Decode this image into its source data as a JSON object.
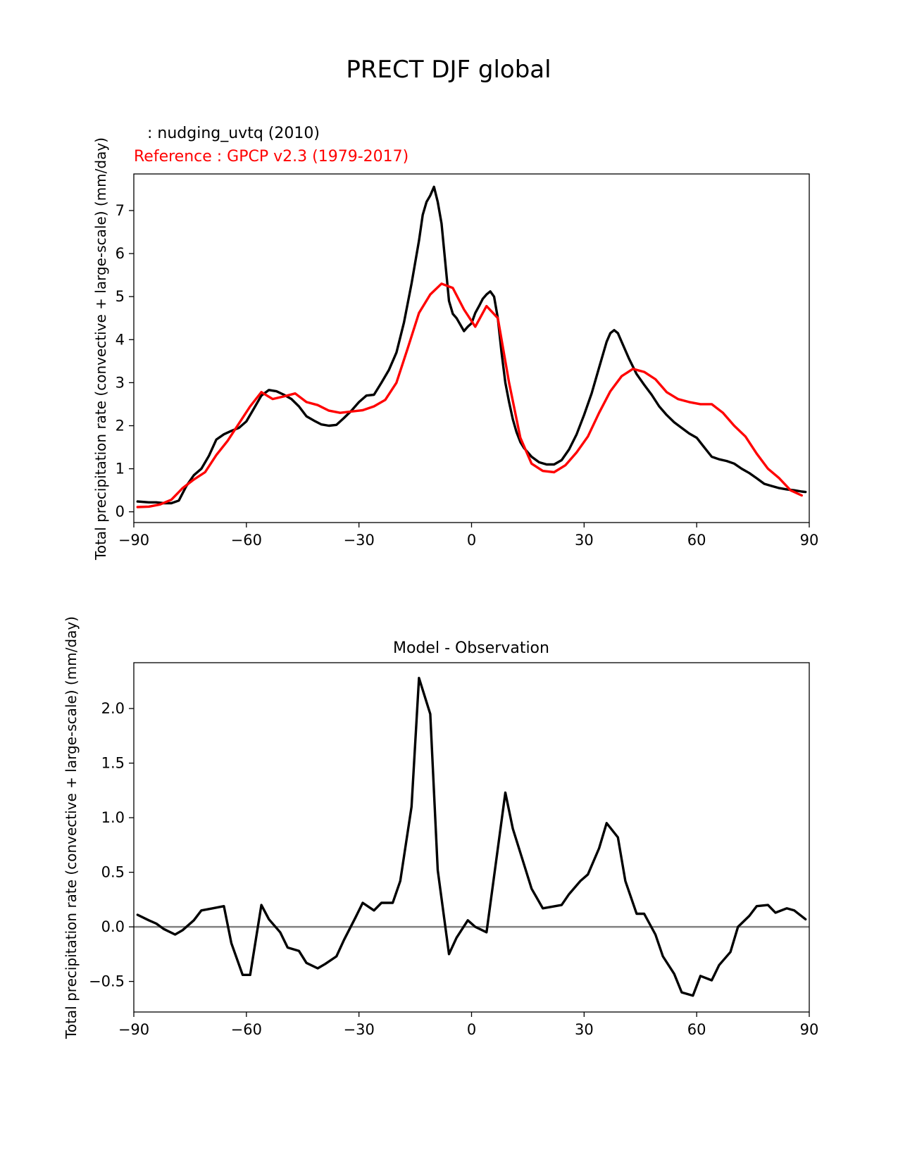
{
  "figure_title": "PRECT DJF global",
  "colors": {
    "model": "#000000",
    "reference": "#ff0000",
    "zero_line": "#808080"
  },
  "chart_data": [
    {
      "type": "line",
      "test_label": "  : nudging_uvtq (2010)",
      "reference_label": "Reference : GPCP v2.3 (1979-2017)",
      "xlabel": "",
      "ylabel": "Total precipitation rate (convective + large-scale) (mm/day)",
      "xlim": [
        -90,
        90
      ],
      "ylim": [
        -0.25,
        7.85
      ],
      "xticks": [
        -90,
        -60,
        -30,
        0,
        30,
        60,
        90
      ],
      "xtick_labels": [
        "−90",
        "−60",
        "−30",
        "0",
        "30",
        "60",
        "90"
      ],
      "yticks": [
        0,
        1,
        2,
        3,
        4,
        5,
        6,
        7
      ],
      "ytick_labels": [
        "0",
        "1",
        "2",
        "3",
        "4",
        "5",
        "6",
        "7"
      ],
      "series": [
        {
          "name": "nudging_uvtq (2010)",
          "color": "model",
          "x": [
            -89,
            -86,
            -84,
            -82,
            -80,
            -78,
            -76,
            -74,
            -72,
            -70,
            -68,
            -66,
            -64,
            -62,
            -60,
            -58,
            -56,
            -54,
            -52,
            -50,
            -48,
            -46,
            -44,
            -42,
            -40,
            -38,
            -36,
            -34,
            -32,
            -30,
            -28,
            -26,
            -24,
            -22,
            -20,
            -18,
            -16,
            -14,
            -13,
            -12,
            -11,
            -10,
            -9,
            -8,
            -7,
            -6,
            -5,
            -4,
            -2,
            -1,
            0,
            1,
            2,
            3,
            4,
            5,
            6,
            7,
            8,
            9,
            10,
            11,
            12,
            13,
            14,
            16,
            18,
            20,
            22,
            24,
            26,
            28,
            30,
            32,
            34,
            36,
            37,
            38,
            39,
            40,
            42,
            44,
            46,
            48,
            50,
            52,
            54,
            56,
            58,
            60,
            62,
            64,
            66,
            68,
            70,
            72,
            74,
            76,
            78,
            80,
            82,
            84,
            86,
            88,
            89
          ],
          "y": [
            0.24,
            0.22,
            0.22,
            0.2,
            0.2,
            0.26,
            0.6,
            0.85,
            1.0,
            1.3,
            1.68,
            1.8,
            1.88,
            1.95,
            2.1,
            2.4,
            2.7,
            2.83,
            2.8,
            2.72,
            2.62,
            2.45,
            2.22,
            2.12,
            2.03,
            2.0,
            2.02,
            2.18,
            2.35,
            2.55,
            2.7,
            2.72,
            3.0,
            3.3,
            3.7,
            4.4,
            5.3,
            6.3,
            6.9,
            7.2,
            7.35,
            7.55,
            7.2,
            6.7,
            5.8,
            4.9,
            4.6,
            4.5,
            4.2,
            4.3,
            4.38,
            4.62,
            4.78,
            4.95,
            5.05,
            5.12,
            5.0,
            4.5,
            3.7,
            3.0,
            2.55,
            2.15,
            1.85,
            1.62,
            1.48,
            1.28,
            1.15,
            1.1,
            1.1,
            1.2,
            1.45,
            1.8,
            2.25,
            2.75,
            3.35,
            3.95,
            4.15,
            4.22,
            4.15,
            3.95,
            3.55,
            3.2,
            2.95,
            2.72,
            2.45,
            2.25,
            2.08,
            1.95,
            1.82,
            1.72,
            1.5,
            1.28,
            1.22,
            1.18,
            1.12,
            1.0,
            0.9,
            0.78,
            0.65,
            0.6,
            0.55,
            0.52,
            0.5,
            0.47,
            0.46
          ]
        },
        {
          "name": "GPCP v2.3 (1979-2017)",
          "color": "reference",
          "x": [
            -89,
            -86,
            -83,
            -80,
            -77,
            -74,
            -71,
            -68,
            -65,
            -62,
            -59,
            -56,
            -53,
            -50,
            -47,
            -44,
            -41,
            -38,
            -35,
            -32,
            -29,
            -26,
            -23,
            -20,
            -17,
            -14,
            -11,
            -8,
            -5,
            -2,
            1,
            4,
            7,
            10,
            13,
            16,
            19,
            22,
            25,
            28,
            31,
            34,
            37,
            40,
            43,
            46,
            49,
            52,
            55,
            58,
            61,
            64,
            67,
            70,
            73,
            76,
            79,
            82,
            85,
            88
          ],
          "y": [
            0.11,
            0.12,
            0.17,
            0.28,
            0.55,
            0.75,
            0.92,
            1.32,
            1.65,
            2.05,
            2.45,
            2.78,
            2.62,
            2.68,
            2.75,
            2.55,
            2.48,
            2.35,
            2.3,
            2.33,
            2.36,
            2.45,
            2.6,
            3.0,
            3.8,
            4.62,
            5.05,
            5.3,
            5.2,
            4.7,
            4.3,
            4.78,
            4.5,
            3.0,
            1.72,
            1.12,
            0.95,
            0.92,
            1.08,
            1.38,
            1.75,
            2.3,
            2.8,
            3.15,
            3.32,
            3.25,
            3.08,
            2.78,
            2.62,
            2.55,
            2.5,
            2.5,
            2.3,
            2.0,
            1.75,
            1.35,
            1.0,
            0.78,
            0.5,
            0.38
          ]
        }
      ]
    },
    {
      "type": "line",
      "title": "Model - Observation",
      "xlabel": "",
      "ylabel": "Total precipitation rate (convective + large-scale) (mm/day)",
      "xlim": [
        -90,
        90
      ],
      "ylim": [
        -0.78,
        2.42
      ],
      "xticks": [
        -90,
        -60,
        -30,
        0,
        30,
        60,
        90
      ],
      "xtick_labels": [
        "−90",
        "−60",
        "−30",
        "0",
        "30",
        "60",
        "90"
      ],
      "yticks": [
        -0.5,
        0.0,
        0.5,
        1.0,
        1.5,
        2.0
      ],
      "ytick_labels": [
        "−0.5",
        "0.0",
        "0.5",
        "1.0",
        "1.5",
        "2.0"
      ],
      "zero_line": 0,
      "series": [
        {
          "name": "Model - Observation",
          "color": "model",
          "x": [
            -89,
            -86,
            -84,
            -82,
            -79,
            -77,
            -74,
            -72,
            -69,
            -66,
            -64,
            -61,
            -59,
            -56,
            -54,
            -51,
            -49,
            -46,
            -44,
            -41,
            -39,
            -36,
            -34,
            -31,
            -29,
            -26,
            -24,
            -21,
            -19,
            -16,
            -14,
            -11,
            -9,
            -6,
            -4,
            -1,
            1,
            4,
            9,
            11,
            14,
            16,
            19,
            24,
            26,
            29,
            31,
            34,
            36,
            39,
            41,
            44,
            46,
            49,
            51,
            54,
            56,
            59,
            61,
            64,
            66,
            69,
            71,
            74,
            76,
            79,
            81,
            84,
            86,
            89
          ],
          "y": [
            0.11,
            0.06,
            0.03,
            -0.02,
            -0.07,
            -0.03,
            0.06,
            0.15,
            0.17,
            0.19,
            -0.15,
            -0.44,
            -0.44,
            0.2,
            0.07,
            -0.05,
            -0.19,
            -0.22,
            -0.33,
            -0.38,
            -0.34,
            -0.27,
            -0.12,
            0.08,
            0.22,
            0.15,
            0.22,
            0.22,
            0.42,
            1.1,
            2.28,
            1.95,
            0.52,
            -0.25,
            -0.1,
            0.06,
            0.0,
            -0.05,
            1.23,
            0.9,
            0.57,
            0.35,
            0.17,
            0.2,
            0.3,
            0.42,
            0.48,
            0.72,
            0.95,
            0.82,
            0.42,
            0.12,
            0.12,
            -0.07,
            -0.27,
            -0.43,
            -0.6,
            -0.63,
            -0.45,
            -0.49,
            -0.35,
            -0.23,
            0.0,
            0.1,
            0.19,
            0.2,
            0.13,
            0.17,
            0.15,
            0.07
          ]
        }
      ]
    }
  ]
}
